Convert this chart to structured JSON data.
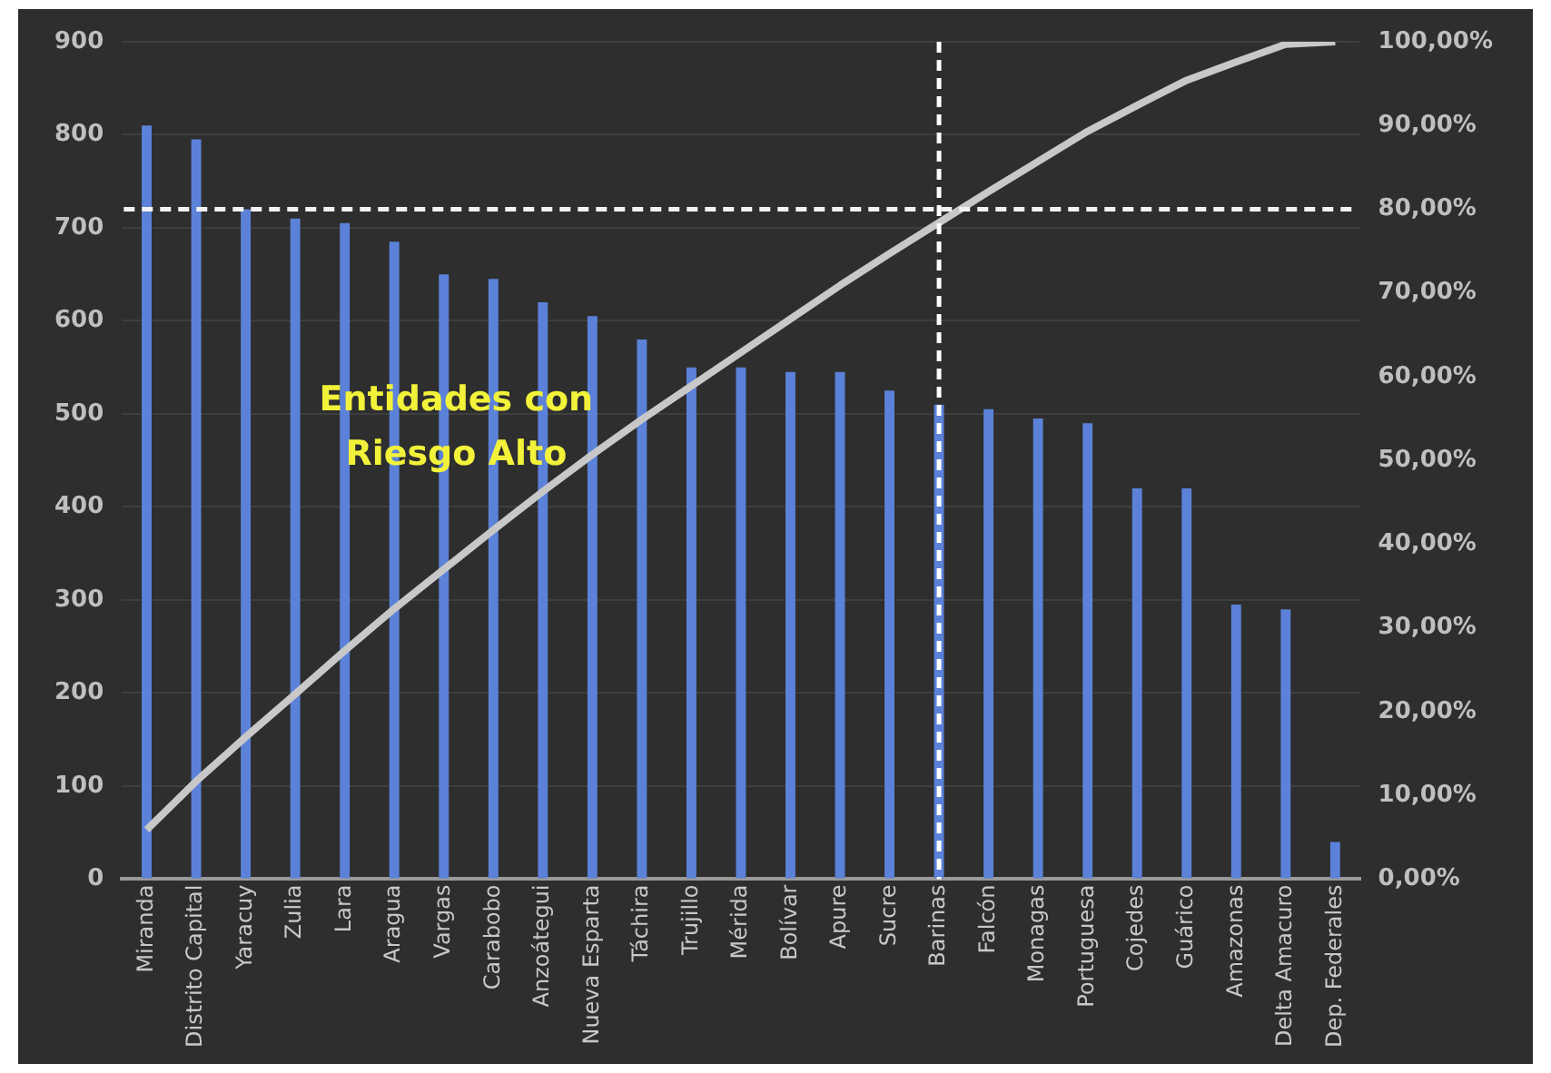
{
  "chart_data": {
    "type": "bar",
    "categories": [
      "Miranda",
      "Distrito Capital",
      "Yaracuy",
      "Zulia",
      "Lara",
      "Aragua",
      "Vargas",
      "Carabobo",
      "Anzoátegui",
      "Nueva Esparta",
      "Táchira",
      "Trujillo",
      "Mérida",
      "Bolívar",
      "Apure",
      "Sucre",
      "Barinas",
      "Falcón",
      "Monagas",
      "Portuguesa",
      "Cojedes",
      "Guárico",
      "Amazonas",
      "Delta Amacuro",
      "Dep. Federales"
    ],
    "series": [
      {
        "color": "#5b82d8",
        "values": [
          810,
          795,
          720,
          710,
          705,
          685,
          650,
          645,
          620,
          605,
          580,
          550,
          550,
          545,
          545,
          525,
          510,
          505,
          495,
          490,
          420,
          420,
          295,
          290,
          40
        ]
      },
      {
        "type": "line",
        "axis": "y2",
        "color": "#c8c8c8",
        "values": [
          5.9,
          11.7,
          17.0,
          22.1,
          27.3,
          32.3,
          37.0,
          41.7,
          46.3,
          50.7,
          54.9,
          58.9,
          62.9,
          66.9,
          70.9,
          74.7,
          78.4,
          82.1,
          85.7,
          89.3,
          92.4,
          95.4,
          97.6,
          99.7,
          100
        ]
      }
    ],
    "ylim": [
      0,
      900
    ],
    "yticks": [
      0,
      100,
      200,
      300,
      400,
      500,
      600,
      700,
      800,
      900
    ],
    "y2lim": [
      0,
      100
    ],
    "y2ticks": [
      {
        "value": 0,
        "label": "0,00%"
      },
      {
        "value": 10,
        "label": "10,00%"
      },
      {
        "value": 20,
        "label": "20,00%"
      },
      {
        "value": 30,
        "label": "30,00%"
      },
      {
        "value": 40,
        "label": "40,00%"
      },
      {
        "value": 50,
        "label": "50,00%"
      },
      {
        "value": 60,
        "label": "60,00%"
      },
      {
        "value": 70,
        "label": "70,00%"
      },
      {
        "value": 80,
        "label": "80,00%"
      },
      {
        "value": 90,
        "label": "90,00%"
      },
      {
        "value": 100,
        "label": "100,00%"
      }
    ],
    "ref_lines": [
      {
        "axis": "y2",
        "value": 80,
        "color": "#f2f2f2",
        "line_style": "dashed"
      },
      {
        "axis": "x",
        "value": "Barinas",
        "color": "#ffffff",
        "line_style": "dashed"
      }
    ],
    "annotations": [
      "Entidades con Riesgo Alto"
    ],
    "grid": "y",
    "marker": "none",
    "legend": false
  }
}
